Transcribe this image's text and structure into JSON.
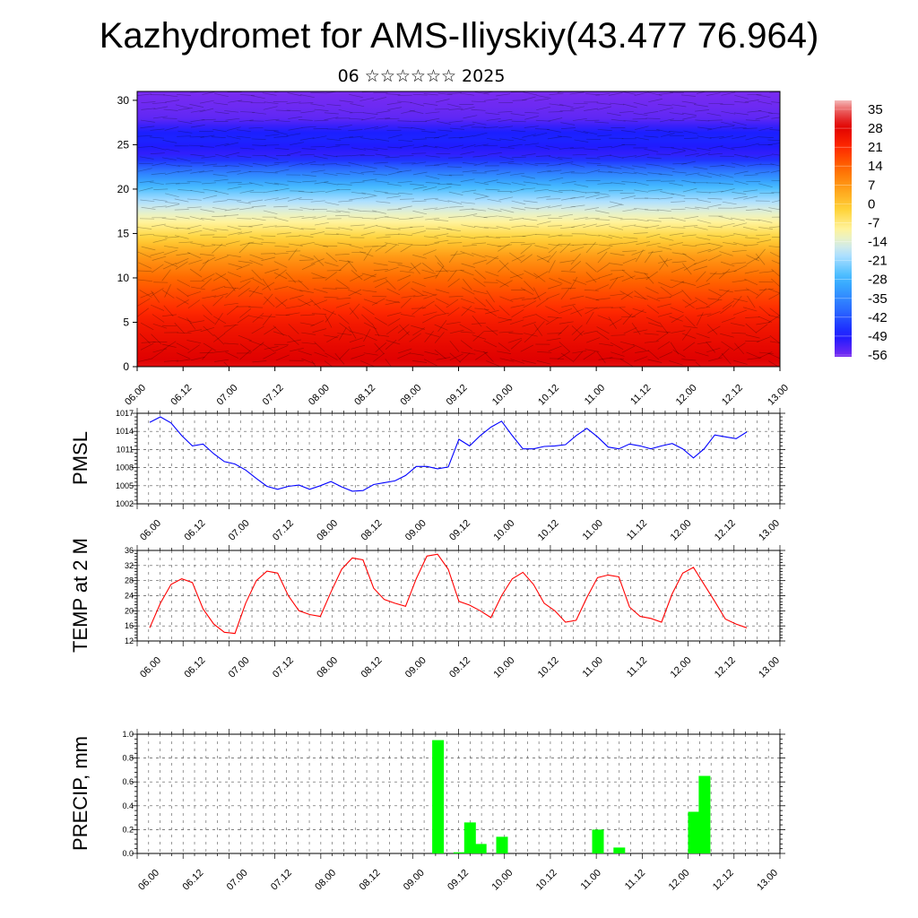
{
  "header": {
    "title": "Kazhydromet for AMS-Iliyskiy(43.477 76.964)",
    "subtitle": "06 ☆☆☆☆☆☆ 2025"
  },
  "time_ticks": [
    "06.00",
    "06.12",
    "07.00",
    "07.12",
    "08.00",
    "08.12",
    "09.00",
    "09.12",
    "10.00",
    "10.12",
    "11.00",
    "11.12",
    "12.00",
    "12.12",
    "13.00"
  ],
  "chart_data": [
    {
      "type": "heatmap",
      "id": "cross-section",
      "x_ticks": [
        "06.00",
        "06.12",
        "07.00",
        "07.12",
        "08.00",
        "08.12",
        "09.00",
        "09.12",
        "10.00",
        "10.12",
        "11.00",
        "11.12",
        "12.00",
        "12.12",
        "13.00"
      ],
      "ylim": [
        0,
        31
      ],
      "y_ticks": [
        0,
        5,
        10,
        15,
        20,
        25,
        30
      ],
      "colorbar": {
        "labels": [
          "35",
          "28",
          "21",
          "14",
          "7",
          "0",
          "-7",
          "-14",
          "-21",
          "-28",
          "-35",
          "-42",
          "-49",
          "-56"
        ],
        "range": [
          -60,
          38
        ]
      },
      "temperature_profile": {
        "height": [
          0,
          5,
          10,
          12.5,
          15,
          17.5,
          20,
          22,
          24,
          26,
          28,
          31
        ],
        "value": [
          29,
          23,
          12,
          5,
          -6,
          -16,
          -28,
          -40,
          -54,
          -50,
          -58,
          -60
        ]
      },
      "colors": {
        "hot": "#e00000",
        "warm": "#ff8c00",
        "neutral": "#fff07a",
        "cool": "#3cb8ff",
        "cold": "#1a1aff",
        "coldest": "#7a2cf0"
      }
    },
    {
      "type": "line",
      "id": "pmsl",
      "ylabel": "PMSL",
      "ylim": [
        1002,
        1017
      ],
      "y_ticks": [
        1002,
        1005,
        1008,
        1011,
        1014,
        1017
      ],
      "x_ticks": [
        "06.00",
        "06.12",
        "07.00",
        "07.12",
        "08.00",
        "08.12",
        "09.00",
        "09.12",
        "10.00",
        "10.12",
        "11.00",
        "11.12",
        "12.00",
        "12.12",
        "13.00"
      ],
      "color": "#0000ff",
      "series": [
        {
          "values": [
            1015.5,
            1016.4,
            1015.4,
            1013.3,
            1011.6,
            1011.9,
            1010.3,
            1009.0,
            1008.6,
            1007.6,
            1006.2,
            1004.9,
            1004.4,
            1004.9,
            1005.1,
            1004.4,
            1005.0,
            1005.7,
            1004.8,
            1004.1,
            1004.2,
            1005.2,
            1005.5,
            1005.8,
            1006.7,
            1008.2,
            1008.2,
            1007.8,
            1008.1,
            1012.7,
            1011.6,
            1013.3,
            1014.7,
            1015.7,
            1013.3,
            1011.1,
            1011.1,
            1011.5,
            1011.6,
            1011.8,
            1013.3,
            1014.5,
            1013.1,
            1011.4,
            1011.1,
            1011.9,
            1011.6,
            1011.1,
            1011.6,
            1012.0,
            1011.1,
            1009.6,
            1011.1,
            1013.4,
            1013.1,
            1012.8,
            1013.9
          ]
        }
      ]
    },
    {
      "type": "line",
      "id": "temp2m",
      "ylabel": "TEMP at 2 M",
      "ylim": [
        12,
        36
      ],
      "y_ticks": [
        12,
        16,
        20,
        24,
        28,
        32,
        36
      ],
      "x_ticks": [
        "06.00",
        "06.12",
        "07.00",
        "07.12",
        "08.00",
        "08.12",
        "09.00",
        "09.12",
        "10.00",
        "10.12",
        "11.00",
        "11.12",
        "12.00",
        "12.12",
        "13.00"
      ],
      "color": "#ff0000",
      "series": [
        {
          "values": [
            15.5,
            22.0,
            27.0,
            28.5,
            27.5,
            20.5,
            16.5,
            14.3,
            14.0,
            22.0,
            28.0,
            30.5,
            30.0,
            24.0,
            20.0,
            19.0,
            18.5,
            25.0,
            31.0,
            34.0,
            33.5,
            26.0,
            23.0,
            22.0,
            21.2,
            28.5,
            34.5,
            35.0,
            31.0,
            22.5,
            21.5,
            20.0,
            18.2,
            24.0,
            28.5,
            30.2,
            27.0,
            22.0,
            20.0,
            17.0,
            17.5,
            23.5,
            28.8,
            29.5,
            29.0,
            21.0,
            18.5,
            18.0,
            17.0,
            24.5,
            30.0,
            31.5,
            27.0,
            22.5,
            17.8,
            16.5,
            15.5
          ]
        }
      ]
    },
    {
      "type": "bar",
      "id": "precip",
      "ylabel": "PRECIP, mm",
      "ylim": [
        0,
        1
      ],
      "y_ticks": [
        "0.0",
        "0.2",
        "0.4",
        "0.6",
        "0.8",
        "1.0"
      ],
      "x_ticks": [
        "06.00",
        "06.12",
        "07.00",
        "07.12",
        "08.00",
        "08.12",
        "09.00",
        "09.12",
        "10.00",
        "10.12",
        "11.00",
        "11.12",
        "12.00",
        "12.12",
        "13.00"
      ],
      "color": "#00ff00",
      "bars": [
        {
          "hour": 81,
          "value": 0.95
        },
        {
          "hour": 87,
          "value": 0.01
        },
        {
          "hour": 90,
          "value": 0.26
        },
        {
          "hour": 93,
          "value": 0.08
        },
        {
          "hour": 99,
          "value": 0.14
        },
        {
          "hour": 126,
          "value": 0.2
        },
        {
          "hour": 132,
          "value": 0.05
        },
        {
          "hour": 153,
          "value": 0.35
        },
        {
          "hour": 156,
          "value": 0.65
        }
      ]
    }
  ]
}
